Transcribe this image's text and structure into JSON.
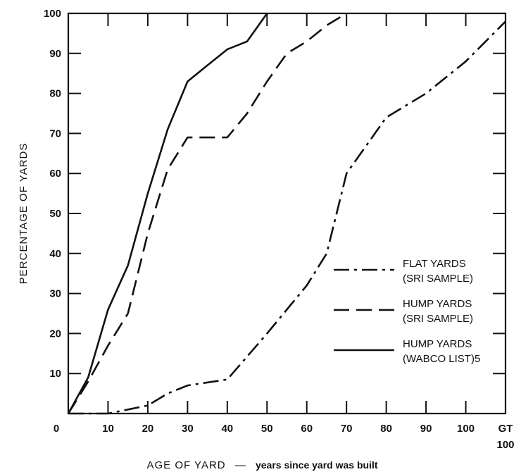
{
  "chart_data": {
    "type": "line",
    "title": "",
    "xlabel_main": "AGE OF YARD",
    "xlabel_sep": "—",
    "xlabel_sub": "years since yard was built",
    "ylabel": "PERCENTAGE OF YARDS",
    "xlim": [
      0,
      110
    ],
    "ylim": [
      0,
      100
    ],
    "x_ticks": [
      {
        "value": 0,
        "label": "0"
      },
      {
        "value": 10,
        "label": "10"
      },
      {
        "value": 20,
        "label": "20"
      },
      {
        "value": 30,
        "label": "30"
      },
      {
        "value": 40,
        "label": "40"
      },
      {
        "value": 50,
        "label": "50"
      },
      {
        "value": 60,
        "label": "60"
      },
      {
        "value": 70,
        "label": "70"
      },
      {
        "value": 80,
        "label": "80"
      },
      {
        "value": 90,
        "label": "90"
      },
      {
        "value": 100,
        "label": "100"
      },
      {
        "value": 110,
        "label": "GT",
        "label2": "100"
      }
    ],
    "y_ticks": [
      10,
      20,
      30,
      40,
      50,
      60,
      70,
      80,
      90,
      100
    ],
    "grid": false,
    "legend_position": "right-center",
    "series": [
      {
        "name": "FLAT YARDS",
        "name2": "(SRI SAMPLE)",
        "style": "dash-dot",
        "points": [
          [
            0,
            0
          ],
          [
            10,
            0
          ],
          [
            15,
            1
          ],
          [
            20,
            2
          ],
          [
            25,
            5
          ],
          [
            30,
            7
          ],
          [
            40,
            8.5
          ],
          [
            50,
            20
          ],
          [
            60,
            32
          ],
          [
            65,
            40
          ],
          [
            70,
            60
          ],
          [
            80,
            74
          ],
          [
            90,
            80
          ],
          [
            100,
            88
          ],
          [
            110,
            98
          ]
        ]
      },
      {
        "name": "HUMP YARDS",
        "name2": "(SRI SAMPLE)",
        "style": "dashed",
        "points": [
          [
            0,
            0
          ],
          [
            5,
            8
          ],
          [
            10,
            17
          ],
          [
            15,
            25
          ],
          [
            20,
            45
          ],
          [
            25,
            61
          ],
          [
            30,
            69
          ],
          [
            40,
            69
          ],
          [
            45,
            75
          ],
          [
            50,
            83
          ],
          [
            55,
            90
          ],
          [
            60,
            93
          ],
          [
            65,
            97
          ],
          [
            70,
            100
          ]
        ]
      },
      {
        "name": "HUMP YARDS",
        "name2": "(WABCO LIST)5",
        "style": "solid",
        "points": [
          [
            0,
            0
          ],
          [
            5,
            9
          ],
          [
            10,
            26
          ],
          [
            15,
            37
          ],
          [
            20,
            55
          ],
          [
            25,
            71
          ],
          [
            30,
            83
          ],
          [
            35,
            87
          ],
          [
            40,
            91
          ],
          [
            45,
            93
          ],
          [
            50,
            100
          ]
        ]
      }
    ]
  }
}
